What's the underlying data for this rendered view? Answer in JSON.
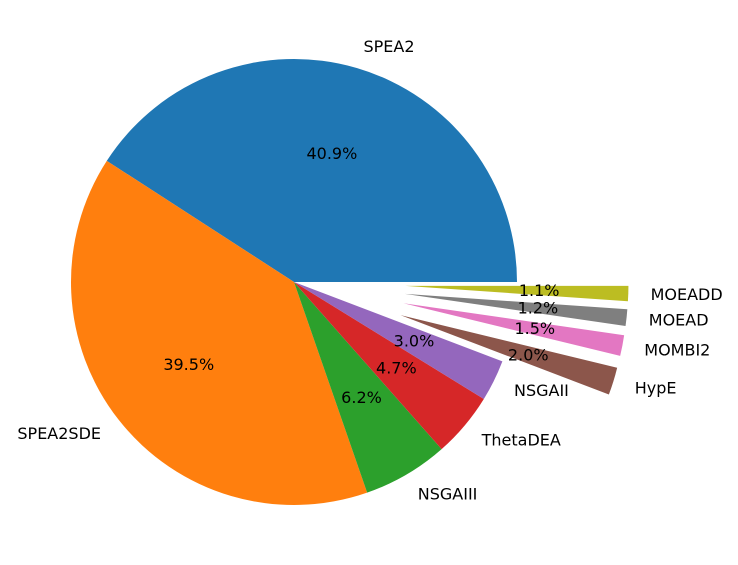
{
  "chart_data": {
    "type": "pie",
    "title": "",
    "start_angle_deg": 0,
    "direction": "counterclockwise",
    "slices": [
      {
        "label": "SPEA2",
        "value": 40.9,
        "pct_label": "40.9%",
        "color": "#1f77b4",
        "explode": 0
      },
      {
        "label": "SPEA2SDE",
        "value": 39.5,
        "pct_label": "39.5%",
        "color": "#ff7f0e",
        "explode": 0
      },
      {
        "label": "NSGAIII",
        "value": 6.2,
        "pct_label": "6.2%",
        "color": "#2ca02c",
        "explode": 0
      },
      {
        "label": "ThetaDEA",
        "value": 4.7,
        "pct_label": "4.7%",
        "color": "#d62728",
        "explode": 0
      },
      {
        "label": "NSGAII",
        "value": 3.0,
        "pct_label": "3.0%",
        "color": "#9467bd",
        "explode": 0
      },
      {
        "label": "HypE",
        "value": 2.0,
        "pct_label": "2.0%",
        "color": "#8c564b",
        "explode": 0.5
      },
      {
        "label": "MOMBI2",
        "value": 1.5,
        "pct_label": "1.5%",
        "color": "#e377c2",
        "explode": 0.5
      },
      {
        "label": "MOEAD",
        "value": 1.2,
        "pct_label": "1.2%",
        "color": "#7f7f7f",
        "explode": 0.5
      },
      {
        "label": "MOEADD",
        "value": 1.1,
        "pct_label": "1.1%",
        "color": "#bcbd22",
        "explode": 0.5
      }
    ]
  }
}
